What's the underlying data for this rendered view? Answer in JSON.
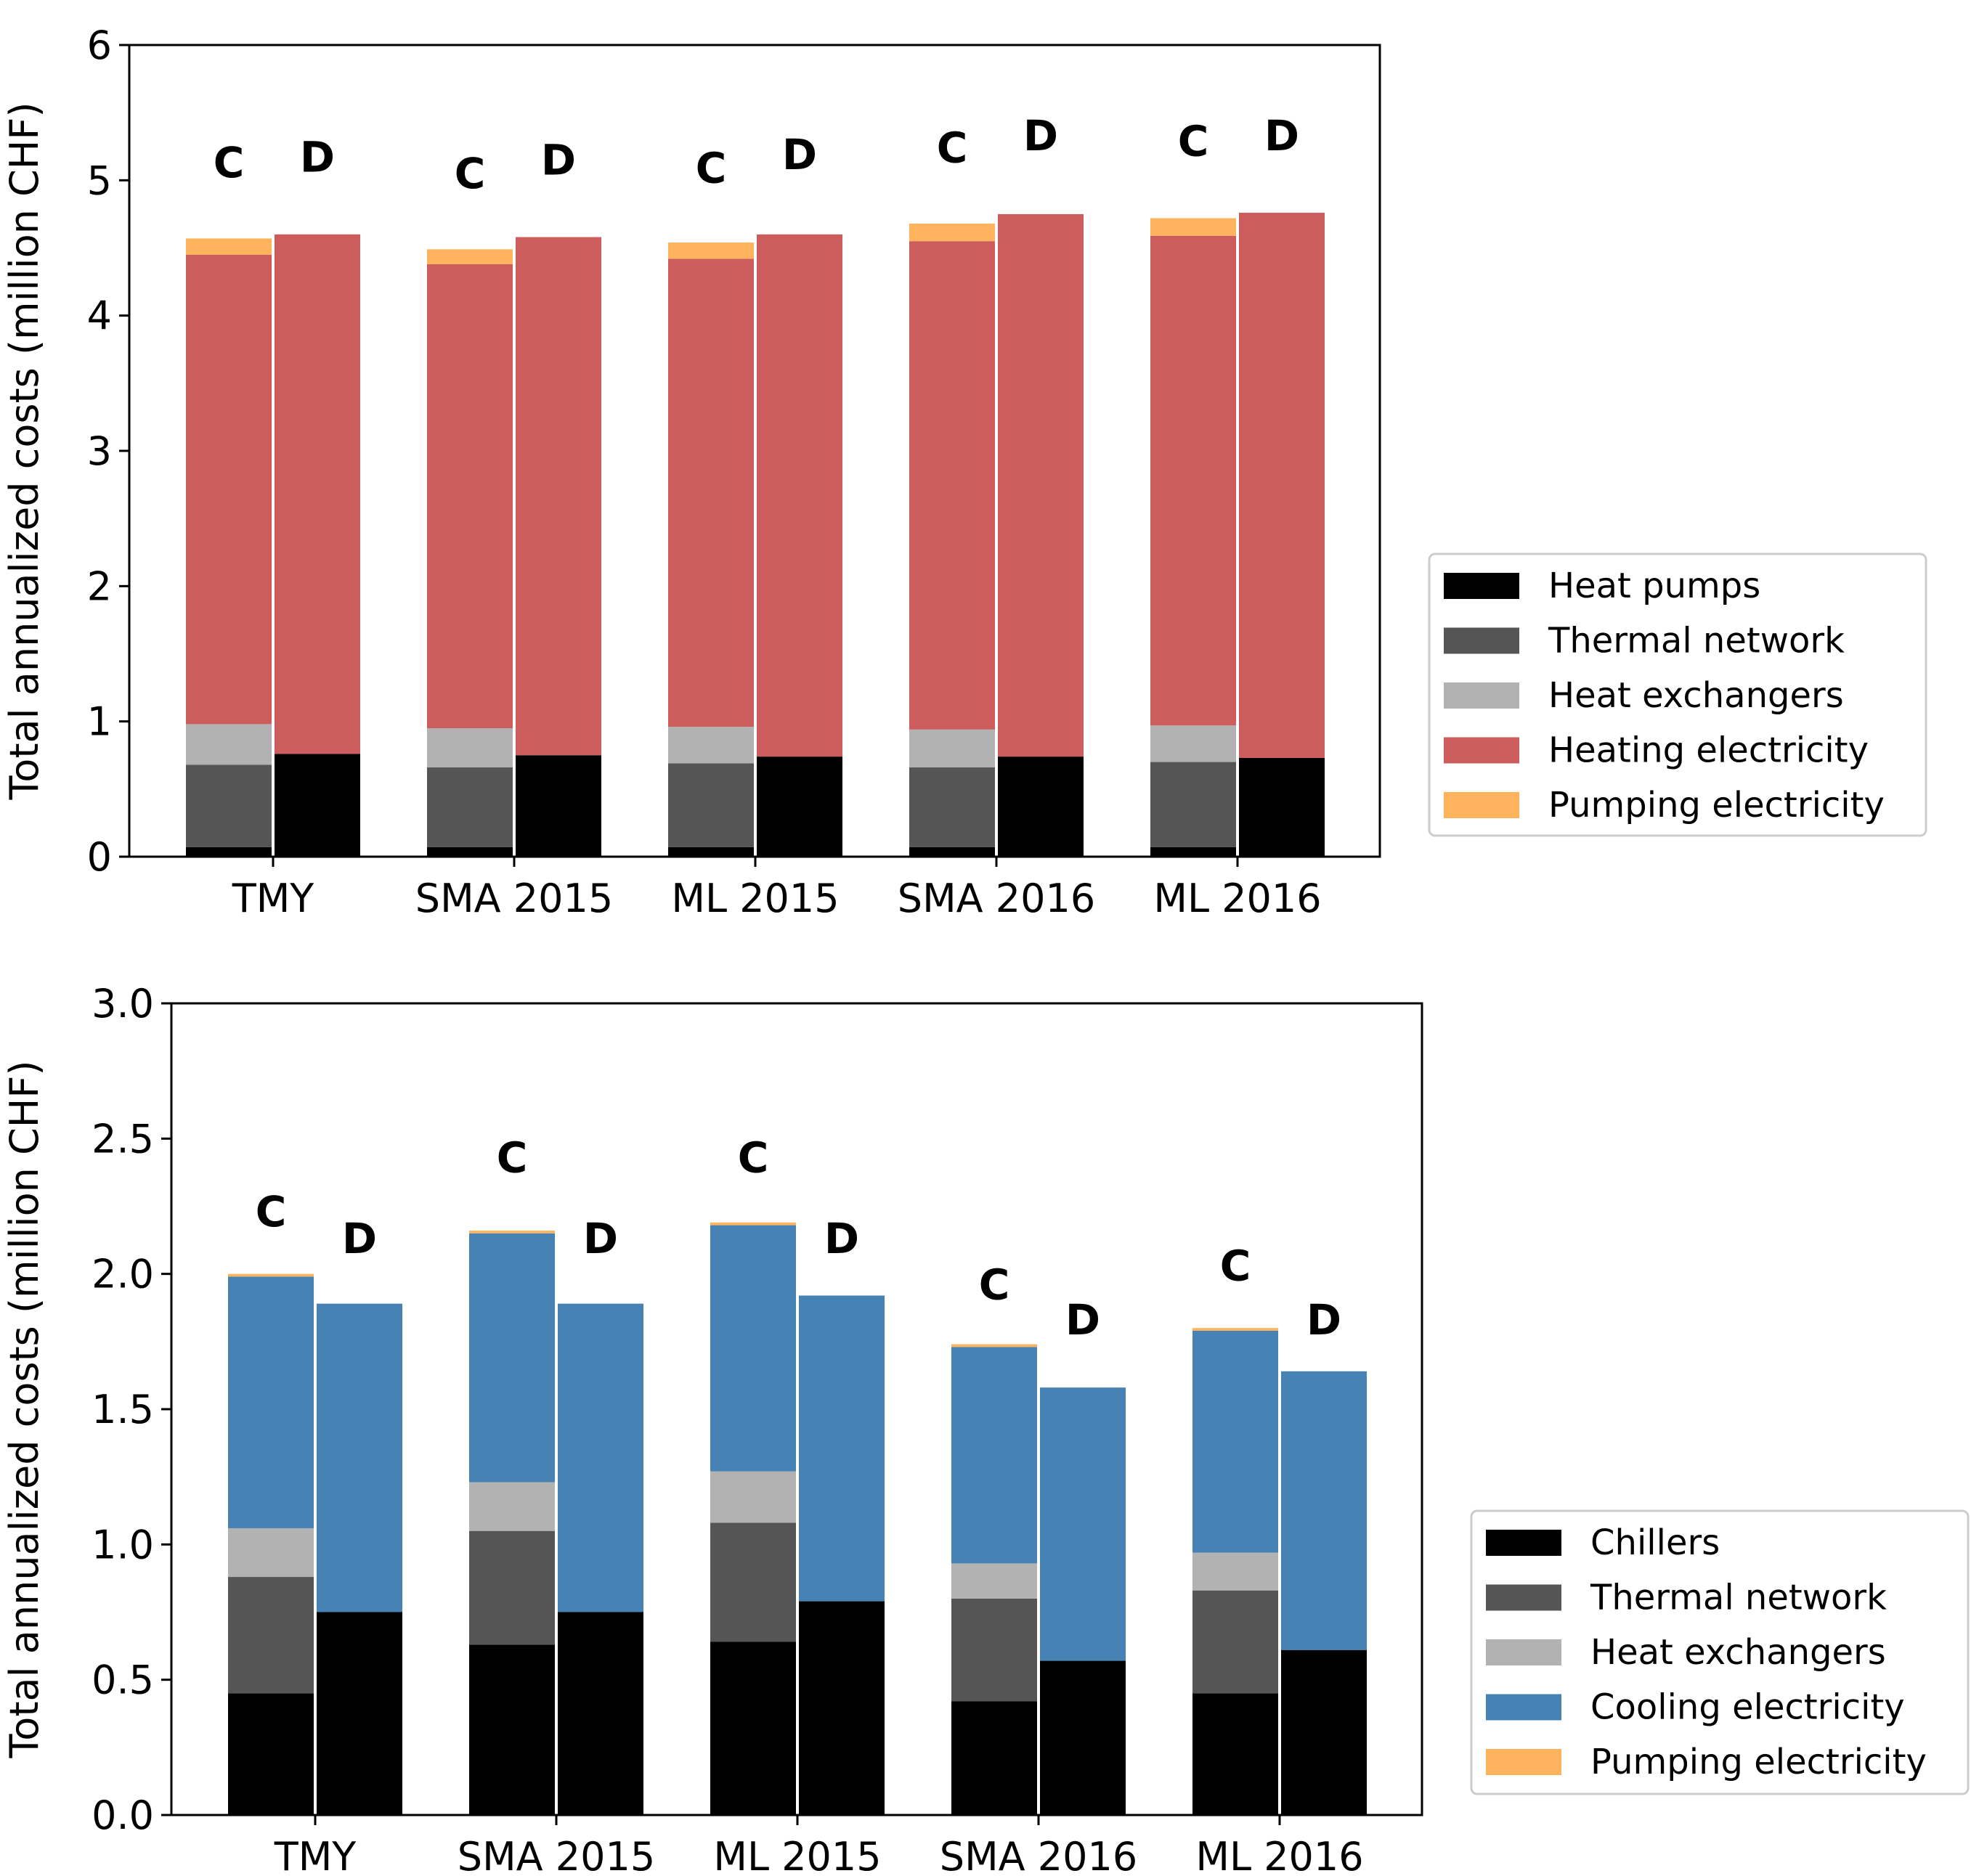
{
  "chart_data": [
    {
      "type": "bar",
      "stacked": true,
      "title": "",
      "xlabel": "",
      "ylabel": "Total annualized costs (million CHF)",
      "ylim": [
        0,
        6
      ],
      "yticks": [
        0,
        1,
        2,
        3,
        4,
        5,
        6
      ],
      "ytick_labels": [
        "0",
        "1",
        "2",
        "3",
        "4",
        "5",
        "6"
      ],
      "categories": [
        "TMY",
        "SMA 2015",
        "ML 2015",
        "SMA 2016",
        "ML 2016"
      ],
      "bar_labels": [
        "C",
        "D"
      ],
      "colors": [
        "#000000",
        "#555555",
        "#b2b2b2",
        "#cd5c5c",
        "#ffb35c"
      ],
      "series": [
        {
          "name": "Heat pumps",
          "C": [
            0.07,
            0.07,
            0.07,
            0.07,
            0.07
          ],
          "D": [
            0.76,
            0.75,
            0.74,
            0.74,
            0.73
          ]
        },
        {
          "name": "Thermal network",
          "C": [
            0.61,
            0.59,
            0.62,
            0.59,
            0.63
          ],
          "D": [
            0,
            0,
            0,
            0,
            0
          ]
        },
        {
          "name": "Heat exchangers",
          "C": [
            0.3,
            0.29,
            0.27,
            0.28,
            0.27
          ],
          "D": [
            0,
            0,
            0,
            0,
            0
          ]
        },
        {
          "name": "Heating electricity",
          "C": [
            3.47,
            3.43,
            3.46,
            3.61,
            3.62
          ],
          "D": [
            3.84,
            3.83,
            3.86,
            4.01,
            4.03
          ]
        },
        {
          "name": "Pumping electricity",
          "C": [
            0.12,
            0.11,
            0.12,
            0.13,
            0.13
          ],
          "D": [
            0,
            0,
            0,
            0,
            0
          ]
        }
      ],
      "label_y": {
        "C": [
          5.13,
          5.05,
          5.09,
          5.24,
          5.29
        ],
        "D": [
          5.17,
          5.15,
          5.19,
          5.33,
          5.33
        ]
      },
      "legend": [
        "Heat pumps",
        "Thermal network",
        "Heat exchangers",
        "Heating electricity",
        "Pumping electricity"
      ],
      "legend_loc": "center right outside"
    },
    {
      "type": "bar",
      "stacked": true,
      "title": "",
      "xlabel": "",
      "ylabel": "Total annualized costs (million CHF)",
      "ylim": [
        0,
        3
      ],
      "yticks": [
        0,
        0.5,
        1,
        1.5,
        2,
        2.5,
        3
      ],
      "ytick_labels": [
        "0.0",
        "0.5",
        "1.0",
        "1.5",
        "2.0",
        "2.5",
        "3.0"
      ],
      "categories": [
        "TMY",
        "SMA 2015",
        "ML 2015",
        "SMA 2016",
        "ML 2016"
      ],
      "bar_labels": [
        "C",
        "D"
      ],
      "colors": [
        "#000000",
        "#555555",
        "#b2b2b2",
        "#4682b4",
        "#ffb35c"
      ],
      "series": [
        {
          "name": "Chillers",
          "C": [
            0.45,
            0.63,
            0.64,
            0.42,
            0.45
          ],
          "D": [
            0.75,
            0.75,
            0.79,
            0.57,
            0.61
          ]
        },
        {
          "name": "Thermal network",
          "C": [
            0.43,
            0.42,
            0.44,
            0.38,
            0.38
          ],
          "D": [
            0,
            0,
            0,
            0,
            0
          ]
        },
        {
          "name": "Heat exchangers",
          "C": [
            0.18,
            0.18,
            0.19,
            0.13,
            0.14
          ],
          "D": [
            0,
            0,
            0,
            0,
            0
          ]
        },
        {
          "name": "Cooling electricity",
          "C": [
            0.93,
            0.92,
            0.91,
            0.8,
            0.82
          ],
          "D": [
            1.14,
            1.14,
            1.13,
            1.01,
            1.03
          ]
        },
        {
          "name": "Pumping electricity",
          "C": [
            0.01,
            0.01,
            0.01,
            0.01,
            0.01
          ],
          "D": [
            0,
            0,
            0,
            0,
            0
          ]
        }
      ],
      "label_y": {
        "C": [
          2.23,
          2.43,
          2.43,
          1.96,
          2.03
        ],
        "D": [
          2.13,
          2.13,
          2.13,
          1.83,
          1.83
        ]
      },
      "legend": [
        "Chillers",
        "Thermal network",
        "Heat exchangers",
        "Cooling electricity",
        "Pumping electricity"
      ],
      "legend_loc": "lower right outside"
    }
  ]
}
